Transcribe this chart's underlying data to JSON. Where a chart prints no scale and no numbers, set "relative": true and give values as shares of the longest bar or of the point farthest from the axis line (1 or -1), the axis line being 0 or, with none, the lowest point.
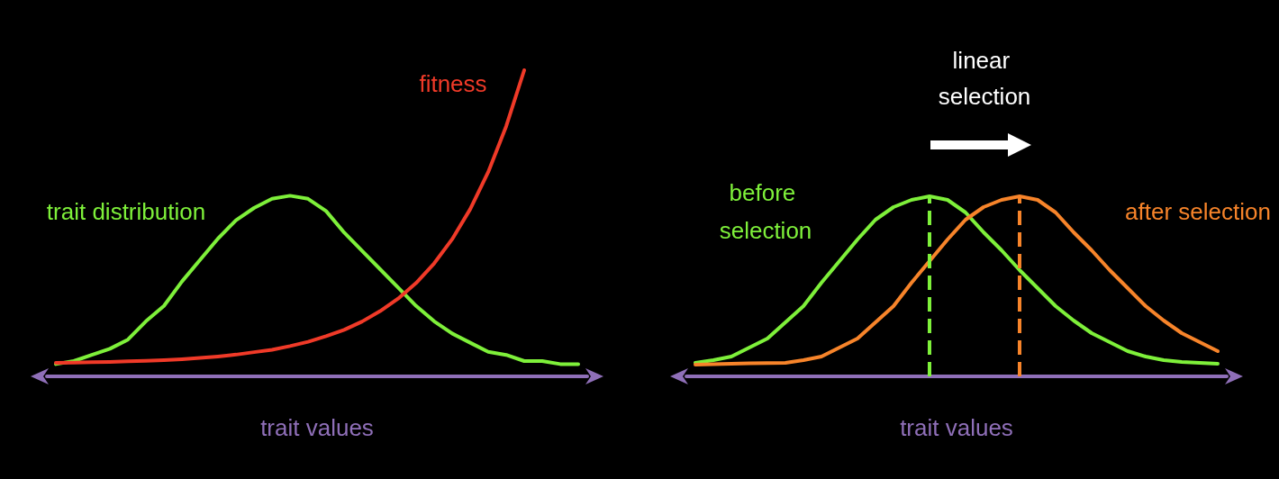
{
  "chart_data": [
    {
      "type": "line",
      "relative": true,
      "marker": "none",
      "xlabel": "trait values",
      "categories": [
        null,
        null,
        null,
        null,
        null,
        null,
        null,
        null,
        null,
        null,
        null,
        null,
        null,
        null,
        null,
        null,
        null,
        null,
        null,
        null,
        null,
        null,
        null,
        null,
        null,
        null,
        null,
        null,
        null,
        null
      ],
      "series": [
        {
          "name": "trait distribution",
          "color": "#7ef03a",
          "values": [
            0.04,
            0.05,
            0.07,
            0.09,
            0.12,
            0.18,
            0.23,
            0.31,
            0.38,
            0.45,
            0.51,
            0.55,
            0.58,
            0.59,
            0.58,
            0.54,
            0.47,
            0.41,
            0.35,
            0.29,
            0.23,
            0.18,
            0.14,
            0.11,
            0.08,
            0.07,
            0.05,
            0.05,
            0.04,
            0.04
          ]
        },
        {
          "name": "fitness",
          "color": "#f03a28",
          "values": [
            0.044,
            0.045,
            0.046,
            0.047,
            0.049,
            0.051,
            0.053,
            0.056,
            0.06,
            0.065,
            0.071,
            0.079,
            0.087,
            0.099,
            0.113,
            0.131,
            0.152,
            0.179,
            0.213,
            0.254,
            0.305,
            0.369,
            0.448,
            0.546,
            0.667,
            0.817,
            1.0,
            null,
            null,
            null
          ]
        }
      ]
    },
    {
      "type": "line",
      "relative": true,
      "marker": "none",
      "title": "linear selection",
      "xlabel": "trait values",
      "categories": [
        null,
        null,
        null,
        null,
        null,
        null,
        null,
        null,
        null,
        null,
        null,
        null,
        null,
        null,
        null,
        null,
        null,
        null,
        null,
        null,
        null,
        null,
        null,
        null,
        null,
        null,
        null,
        null,
        null,
        null
      ],
      "series": [
        {
          "name": "before selection",
          "color": "#7ef03a",
          "values": [
            0.075,
            0.09,
            0.11,
            0.16,
            0.21,
            0.3,
            0.39,
            0.52,
            0.64,
            0.76,
            0.87,
            0.94,
            0.98,
            1.0,
            0.98,
            0.91,
            0.8,
            0.7,
            0.59,
            0.49,
            0.39,
            0.31,
            0.24,
            0.19,
            0.14,
            0.11,
            0.09,
            0.08,
            0.075,
            0.07
          ]
        },
        {
          "name": "after selection",
          "color": "#f7842a",
          "values": [
            0.065,
            0.067,
            0.07,
            0.072,
            0.074,
            0.075,
            0.09,
            0.11,
            0.16,
            0.21,
            0.3,
            0.39,
            0.52,
            0.64,
            0.76,
            0.87,
            0.94,
            0.98,
            1.0,
            0.98,
            0.91,
            0.8,
            0.7,
            0.59,
            0.49,
            0.39,
            0.31,
            0.24,
            0.19,
            0.14
          ]
        }
      ]
    }
  ]
}
